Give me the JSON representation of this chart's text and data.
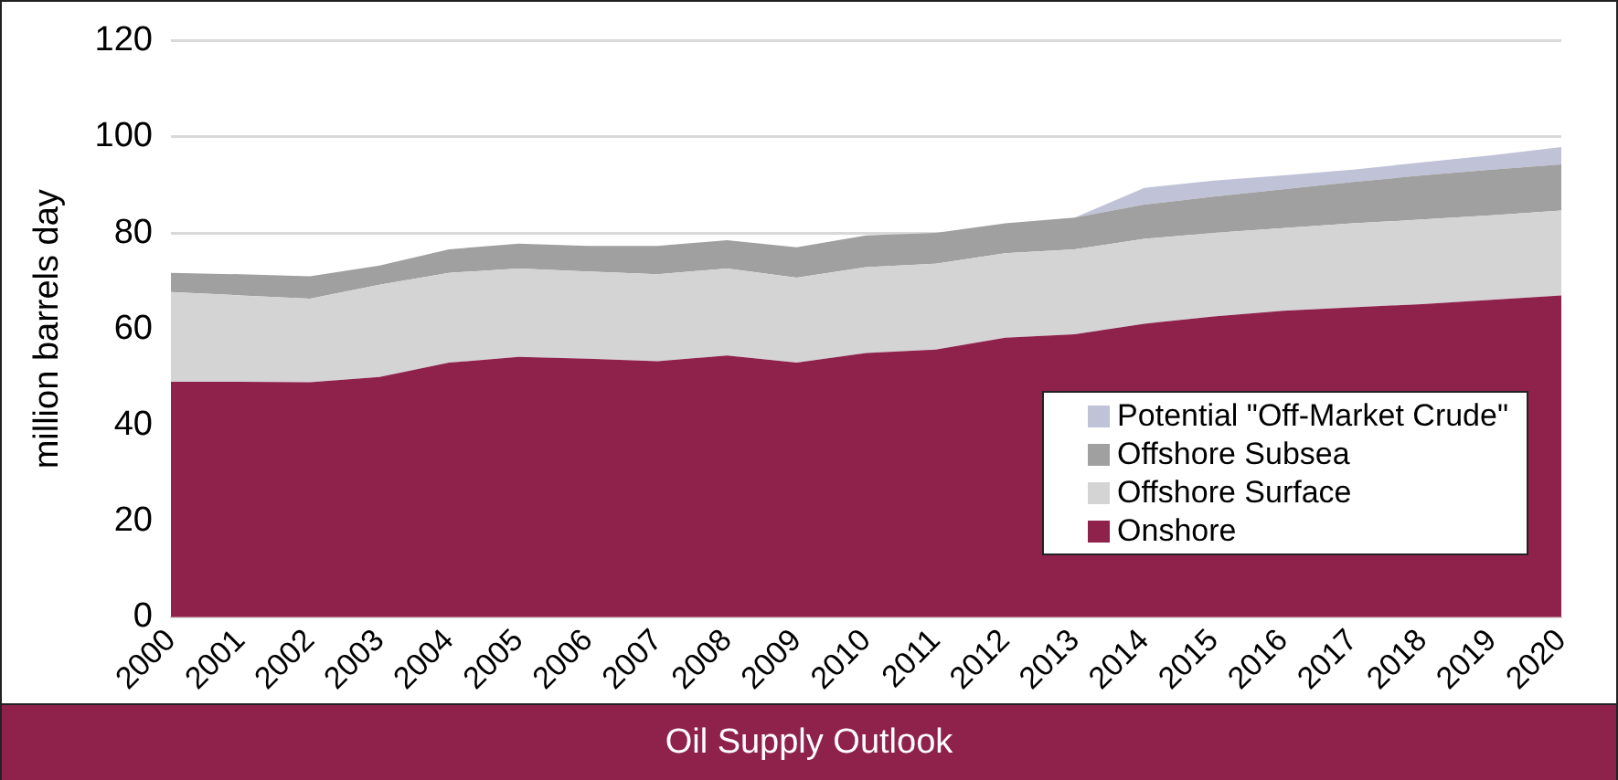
{
  "chart_data": {
    "type": "area",
    "title": "Oil Supply Outlook",
    "ylabel": "million barrels day",
    "stacked": true,
    "categories": [
      "2000",
      "2001",
      "2002",
      "2003",
      "2004",
      "2005",
      "2006",
      "2007",
      "2008",
      "2009",
      "2010",
      "2011",
      "2012",
      "2013",
      "2014",
      "2015",
      "2016",
      "2017",
      "2018",
      "2019",
      "2020"
    ],
    "series": [
      {
        "name": "Onshore",
        "color": "#8e224b",
        "values": [
          49,
          49,
          48.9,
          50,
          53,
          54.2,
          53.8,
          53.3,
          54.5,
          53,
          55,
          55.7,
          58.2,
          58.9,
          61.1,
          62.6,
          63.8,
          64.5,
          65.2,
          66.1,
          67
        ]
      },
      {
        "name": "Offshore Surface",
        "color": "#d4d4d4",
        "values": [
          18.7,
          18,
          17.4,
          19.2,
          18.7,
          18.4,
          18.2,
          18.1,
          18.1,
          17.7,
          17.9,
          17.9,
          17.6,
          17.7,
          17.7,
          17.4,
          17.2,
          17.5,
          17.6,
          17.6,
          17.7
        ]
      },
      {
        "name": "Offshore Subsea",
        "color": "#a0a0a0",
        "values": [
          4,
          4.4,
          4.7,
          4,
          4.9,
          5.2,
          5.3,
          5.9,
          5.9,
          6.3,
          6.6,
          6.4,
          6.2,
          6.6,
          7.1,
          7.6,
          8.1,
          8.6,
          9.2,
          9.5,
          9.6
        ]
      },
      {
        "name": "Potential \"Off-Market Crude\"",
        "color": "#c0c2d8",
        "values": [
          null,
          null,
          null,
          null,
          null,
          null,
          null,
          null,
          null,
          null,
          null,
          null,
          null,
          0,
          3.5,
          3.3,
          2.9,
          2.6,
          2.7,
          3,
          3.6
        ]
      }
    ],
    "ylim": [
      0,
      120
    ],
    "yticks": [
      0,
      20,
      40,
      60,
      80,
      100,
      120
    ],
    "grid": "y",
    "legend": "bottom right"
  }
}
